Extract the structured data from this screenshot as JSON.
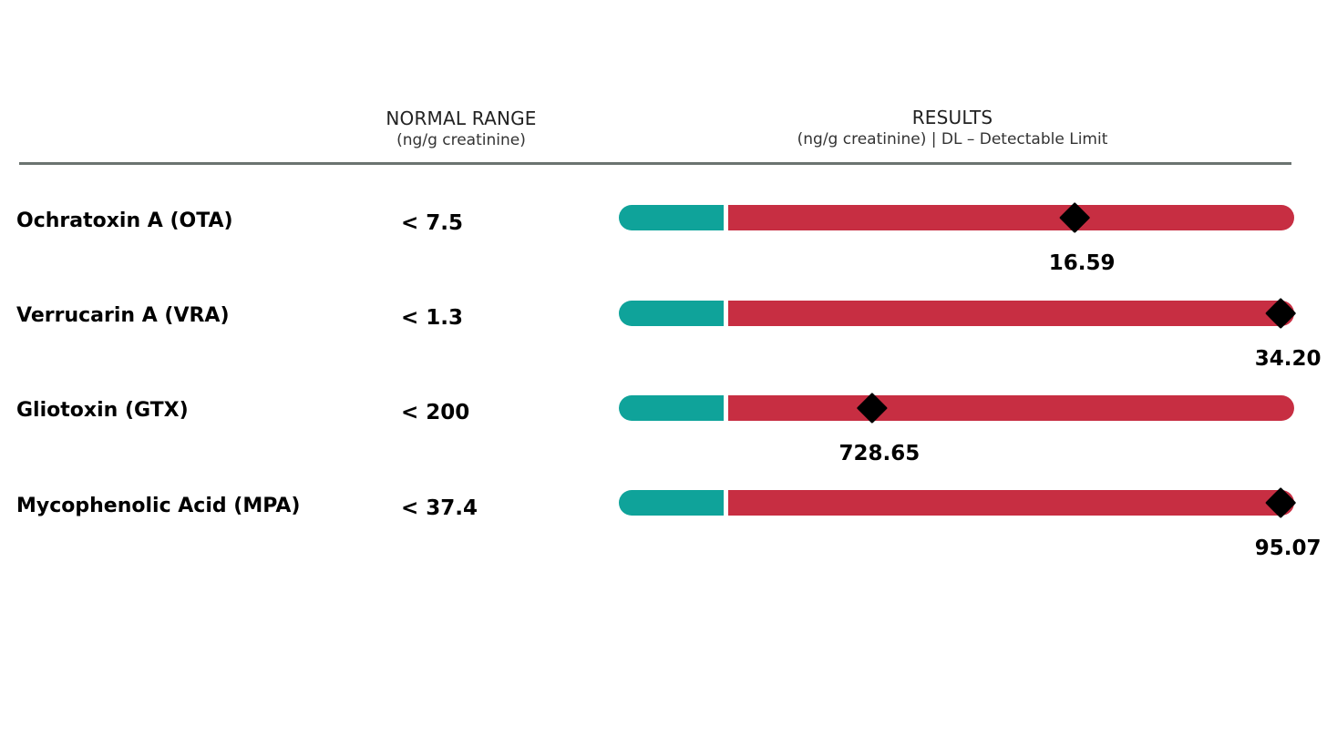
{
  "headers": {
    "normal_range": {
      "title": "NORMAL RANGE",
      "subtitle": "(ng/g creatinine)"
    },
    "results": {
      "title": "RESULTS",
      "subtitle": "(ng/g creatinine) | DL – Detectable Limit"
    }
  },
  "rows": [
    {
      "name": "Ochratoxin A (OTA)",
      "normal_range": "< 7.5"
    },
    {
      "name": "Verrucarin A (VRA)",
      "normal_range": "< 1.3"
    },
    {
      "name": "Gliotoxin (GTX)",
      "normal_range": "< 200"
    },
    {
      "name": "Mycophenolic Acid (MPA)",
      "normal_range": "< 37.4"
    }
  ],
  "colors": {
    "normal_segment": "#0fa39a",
    "elevated_segment": "#c72e42",
    "marker": "#000000",
    "rule": "#6b7370"
  },
  "chart_data": {
    "type": "bar",
    "categories": [
      "Ochratoxin A (OTA)",
      "Verrucarin A (VRA)",
      "Gliotoxin (GTX)",
      "Mycophenolic Acid (MPA)"
    ],
    "series": [
      {
        "values": [
          16.59,
          34.2,
          728.65,
          95.07
        ],
        "labels": [
          "16.59",
          "34.20",
          "728.65",
          "95.07"
        ],
        "marker_fraction": [
          0.675,
          0.98,
          0.375,
          0.98
        ]
      }
    ],
    "normal_fraction": 0.155,
    "normal_limits": [
      7.5,
      1.3,
      200,
      37.4
    ],
    "grid": false
  }
}
